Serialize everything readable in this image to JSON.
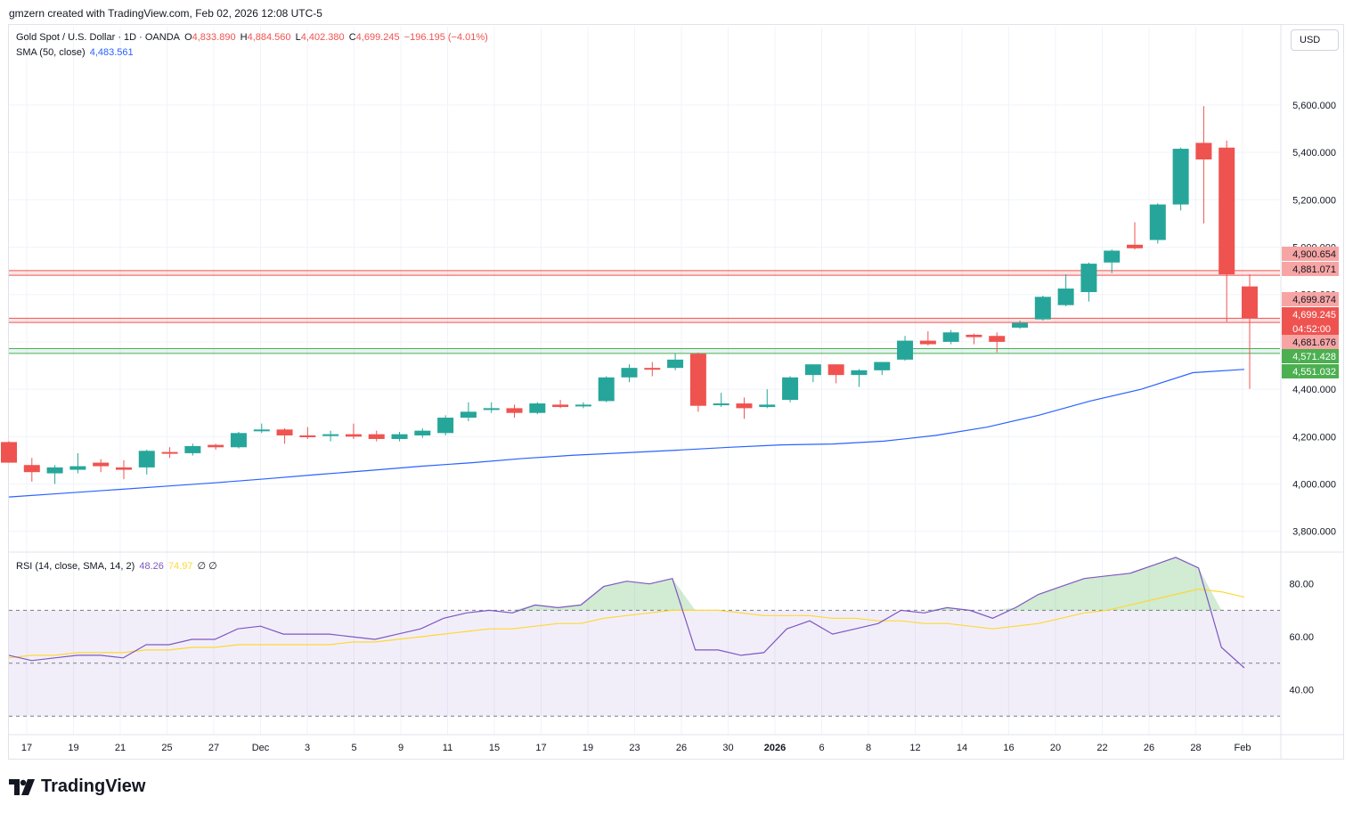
{
  "header": {
    "note": "gmzern created with TradingView.com, Feb 02, 2026 12:08 UTC-5"
  },
  "legend": {
    "symbol": "Gold Spot / U.S. Dollar · 1D · OANDA",
    "o_label": "O",
    "o_val": "4,833.890",
    "h_label": "H",
    "h_val": "4,884.560",
    "l_label": "L",
    "l_val": "4,402.380",
    "c_label": "C",
    "c_val": "4,699.245",
    "change": "−196.195 (−4.01%)",
    "sma_label": "SMA (50, close)",
    "sma_val": "4,483.561",
    "rsi_label": "RSI (14, close, SMA, 14, 2)",
    "rsi_val": "48.26",
    "rsi_ma_val": "74.97",
    "rsi_extra": "∅  ∅"
  },
  "currency": "USD",
  "footer": {
    "brand": "TradingView"
  },
  "colors": {
    "up": "#26a69a",
    "down": "#ef5350",
    "sma": "#2962ff",
    "rsi": "#7e57c2",
    "rsi_ma": "#fdd835"
  },
  "chart_data": {
    "type": "candlestick",
    "price_axis": {
      "ylim": [
        3720,
        5780
      ],
      "ticks": [
        "3,800.000",
        "4,000.000",
        "4,200.000",
        "4,400.000",
        "4,600.000",
        "4,800.000",
        "5,000.000",
        "5,200.000",
        "5,400.000",
        "5,600.000"
      ]
    },
    "x_labels": [
      "17",
      "19",
      "21",
      "25",
      "27",
      "Dec",
      "3",
      "5",
      "9",
      "11",
      "15",
      "17",
      "19",
      "23",
      "26",
      "30",
      "2026",
      "6",
      "8",
      "12",
      "14",
      "16",
      "20",
      "22",
      "26",
      "28",
      "Feb"
    ],
    "candles": [
      {
        "o": 4177,
        "h": 4180,
        "l": 4090,
        "c": 4090
      },
      {
        "o": 4080,
        "h": 4110,
        "l": 4010,
        "c": 4050
      },
      {
        "o": 4045,
        "h": 4080,
        "l": 4000,
        "c": 4070
      },
      {
        "o": 4060,
        "h": 4130,
        "l": 4045,
        "c": 4075
      },
      {
        "o": 4090,
        "h": 4105,
        "l": 4050,
        "c": 4075
      },
      {
        "o": 4070,
        "h": 4100,
        "l": 4020,
        "c": 4060
      },
      {
        "o": 4070,
        "h": 4145,
        "l": 4040,
        "c": 4140
      },
      {
        "o": 4135,
        "h": 4155,
        "l": 4110,
        "c": 4130
      },
      {
        "o": 4130,
        "h": 4170,
        "l": 4120,
        "c": 4160
      },
      {
        "o": 4165,
        "h": 4170,
        "l": 4145,
        "c": 4155
      },
      {
        "o": 4155,
        "h": 4220,
        "l": 4150,
        "c": 4215
      },
      {
        "o": 4225,
        "h": 4255,
        "l": 4215,
        "c": 4230
      },
      {
        "o": 4230,
        "h": 4235,
        "l": 4170,
        "c": 4205
      },
      {
        "o": 4205,
        "h": 4240,
        "l": 4190,
        "c": 4200
      },
      {
        "o": 4205,
        "h": 4225,
        "l": 4180,
        "c": 4210
      },
      {
        "o": 4210,
        "h": 4255,
        "l": 4190,
        "c": 4200
      },
      {
        "o": 4210,
        "h": 4225,
        "l": 4180,
        "c": 4190
      },
      {
        "o": 4190,
        "h": 4220,
        "l": 4180,
        "c": 4210
      },
      {
        "o": 4205,
        "h": 4235,
        "l": 4195,
        "c": 4225
      },
      {
        "o": 4215,
        "h": 4290,
        "l": 4205,
        "c": 4280
      },
      {
        "o": 4280,
        "h": 4345,
        "l": 4265,
        "c": 4305
      },
      {
        "o": 4320,
        "h": 4345,
        "l": 4300,
        "c": 4320
      },
      {
        "o": 4320,
        "h": 4335,
        "l": 4280,
        "c": 4300
      },
      {
        "o": 4300,
        "h": 4345,
        "l": 4295,
        "c": 4340
      },
      {
        "o": 4335,
        "h": 4355,
        "l": 4320,
        "c": 4325
      },
      {
        "o": 4330,
        "h": 4345,
        "l": 4320,
        "c": 4335
      },
      {
        "o": 4350,
        "h": 4455,
        "l": 4345,
        "c": 4450
      },
      {
        "o": 4450,
        "h": 4505,
        "l": 4430,
        "c": 4490
      },
      {
        "o": 4490,
        "h": 4515,
        "l": 4455,
        "c": 4485
      },
      {
        "o": 4490,
        "h": 4550,
        "l": 4480,
        "c": 4525
      },
      {
        "o": 4550,
        "h": 4555,
        "l": 4305,
        "c": 4330
      },
      {
        "o": 4340,
        "h": 4385,
        "l": 4325,
        "c": 4340
      },
      {
        "o": 4340,
        "h": 4365,
        "l": 4275,
        "c": 4320
      },
      {
        "o": 4325,
        "h": 4400,
        "l": 4320,
        "c": 4335
      },
      {
        "o": 4355,
        "h": 4455,
        "l": 4345,
        "c": 4450
      },
      {
        "o": 4460,
        "h": 4505,
        "l": 4430,
        "c": 4505
      },
      {
        "o": 4505,
        "h": 4505,
        "l": 4425,
        "c": 4460
      },
      {
        "o": 4460,
        "h": 4485,
        "l": 4410,
        "c": 4480
      },
      {
        "o": 4480,
        "h": 4515,
        "l": 4460,
        "c": 4515
      },
      {
        "o": 4525,
        "h": 4625,
        "l": 4520,
        "c": 4605
      },
      {
        "o": 4605,
        "h": 4645,
        "l": 4585,
        "c": 4590
      },
      {
        "o": 4600,
        "h": 4650,
        "l": 4590,
        "c": 4640
      },
      {
        "o": 4630,
        "h": 4635,
        "l": 4590,
        "c": 4620
      },
      {
        "o": 4625,
        "h": 4640,
        "l": 4555,
        "c": 4600
      },
      {
        "o": 4660,
        "h": 4690,
        "l": 4655,
        "c": 4680
      },
      {
        "o": 4695,
        "h": 4795,
        "l": 4690,
        "c": 4790
      },
      {
        "o": 4755,
        "h": 4885,
        "l": 4750,
        "c": 4825
      },
      {
        "o": 4810,
        "h": 4935,
        "l": 4770,
        "c": 4930
      },
      {
        "o": 4935,
        "h": 4990,
        "l": 4890,
        "c": 4985
      },
      {
        "o": 5010,
        "h": 5105,
        "l": 4990,
        "c": 4995
      },
      {
        "o": 5030,
        "h": 5185,
        "l": 5015,
        "c": 5180
      },
      {
        "o": 5180,
        "h": 5420,
        "l": 5155,
        "c": 5415
      },
      {
        "o": 5440,
        "h": 5595,
        "l": 5100,
        "c": 5370
      },
      {
        "o": 5420,
        "h": 5450,
        "l": 4685,
        "c": 4885
      },
      {
        "o": 4834,
        "h": 4885,
        "l": 4402,
        "c": 4699
      }
    ],
    "sma50": [
      3945,
      3960,
      3975,
      3990,
      4005,
      4022,
      4040,
      4057,
      4075,
      4090,
      4108,
      4122,
      4132,
      4143,
      4155,
      4165,
      4169,
      4181,
      4205,
      4240,
      4290,
      4350,
      4400,
      4470,
      4484
    ],
    "levels": [
      {
        "value": 4900.654,
        "label": "4,900.654",
        "kind": "resistance"
      },
      {
        "value": 4881.071,
        "label": "4,881.071",
        "kind": "resistance"
      },
      {
        "value": 4699.874,
        "label": "4,699.874",
        "kind": "current"
      },
      {
        "value": 4699.245,
        "label": "4,699.245",
        "kind": "current"
      },
      {
        "value": 4681.676,
        "label": "4,681.676",
        "kind": "resistance"
      },
      {
        "value": 4571.428,
        "label": "4,571.428",
        "kind": "support"
      },
      {
        "value": 4551.032,
        "label": "4,551.032",
        "kind": "support"
      }
    ],
    "countdown": "04:52:00",
    "rsi": {
      "ylim": [
        23,
        92
      ],
      "ticks": [
        "40.00",
        "60.00",
        "80.00"
      ],
      "bands": [
        30,
        50,
        70
      ],
      "values": [
        53,
        51,
        52,
        53,
        53,
        52,
        57,
        57,
        59,
        59,
        63,
        64,
        61,
        61,
        61,
        60,
        59,
        61,
        63,
        67,
        69,
        70,
        69,
        72,
        71,
        72,
        79,
        81,
        80,
        82,
        55,
        55,
        53,
        54,
        63,
        66,
        61,
        63,
        65,
        70,
        69,
        71,
        70,
        67,
        71,
        76,
        79,
        82,
        83,
        84,
        87,
        90,
        86,
        56,
        48.26
      ],
      "ma_values": [
        52,
        53,
        53,
        54,
        54,
        54,
        55,
        55,
        56,
        56,
        57,
        57,
        57,
        57,
        57,
        58,
        58,
        59,
        60,
        61,
        62,
        63,
        63,
        64,
        65,
        65,
        67,
        68,
        69,
        70,
        70,
        70,
        69,
        68,
        68,
        68,
        67,
        67,
        66,
        66,
        65,
        65,
        64,
        63,
        64,
        65,
        67,
        69,
        70,
        72,
        74,
        76,
        78,
        77,
        74.97
      ]
    }
  }
}
